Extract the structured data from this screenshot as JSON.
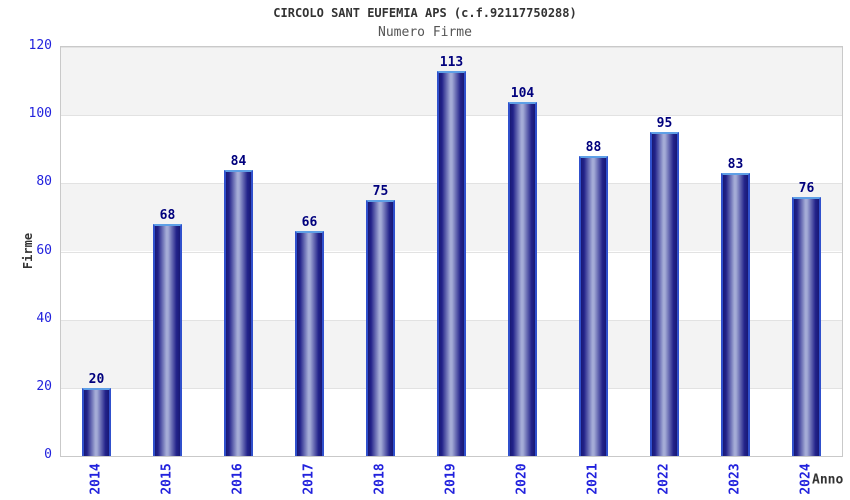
{
  "chart_data": {
    "type": "bar",
    "title": "CIRCOLO SANT EUFEMIA APS (c.f.92117750288)",
    "subtitle": "Numero Firme",
    "xlabel": "Anno",
    "ylabel": "Firme",
    "categories": [
      "2014",
      "2015",
      "2016",
      "2017",
      "2018",
      "2019",
      "2020",
      "2021",
      "2022",
      "2023",
      "2024"
    ],
    "values": [
      20,
      68,
      84,
      66,
      75,
      113,
      104,
      88,
      95,
      83,
      76
    ],
    "ylim": [
      0,
      120
    ],
    "yticks": [
      0,
      20,
      40,
      60,
      80,
      100,
      120
    ],
    "legend": "none",
    "grid": "horizontal alternating bands",
    "colors": {
      "bar_gradient_edge": "#191975",
      "bar_gradient_mid": "#22228a",
      "bar_gradient_center": "#a4abd6",
      "bar_border_top": "#5e9fe6",
      "bar_border_side": "#3050cc",
      "tick_label_blue": "#2222dd",
      "value_label_navy": "#00007d",
      "band_gray": "#f3f3f3",
      "band_white": "#ffffff",
      "gridline": "#e2e2e2",
      "plot_border": "#c9c9c9",
      "title_color": "#333333",
      "subtitle_color": "#555555"
    }
  }
}
